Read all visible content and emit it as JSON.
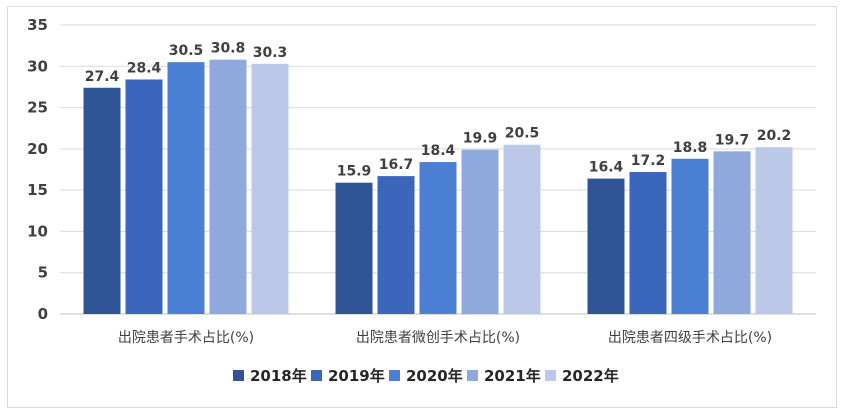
{
  "chart_data": {
    "type": "bar",
    "categories": [
      "出院患者手术占比(%)",
      "出院患者微创手术占比(%)",
      "出院患者四级手术占比(%)"
    ],
    "series": [
      {
        "name": "2018年",
        "values": [
          27.4,
          15.9,
          16.4
        ],
        "color": "#2F5597"
      },
      {
        "name": "2019年",
        "values": [
          28.4,
          16.7,
          17.2
        ],
        "color": "#3A66BB"
      },
      {
        "name": "2020年",
        "values": [
          30.5,
          18.4,
          18.8
        ],
        "color": "#4A7FD4"
      },
      {
        "name": "2021年",
        "values": [
          30.8,
          19.9,
          19.7
        ],
        "color": "#8FA9DC"
      },
      {
        "name": "2022年",
        "values": [
          30.3,
          20.5,
          20.2
        ],
        "color": "#BCC8E8"
      }
    ],
    "title": "",
    "xlabel": "",
    "ylabel": "",
    "ylim": [
      0,
      35
    ],
    "yticks": [
      "0",
      "5",
      "10",
      "15",
      "20",
      "25",
      "30",
      "35"
    ],
    "grid": true,
    "legend_position": "bottom",
    "data_labels": [
      [
        "27.4",
        "15.9",
        "16.4"
      ],
      [
        "28.4",
        "16.7",
        "17.2"
      ],
      [
        "30.5",
        "18.4",
        "18.8"
      ],
      [
        "30.8",
        "19.9",
        "19.7"
      ],
      [
        "30.3",
        "20.5",
        "20.2"
      ]
    ]
  }
}
